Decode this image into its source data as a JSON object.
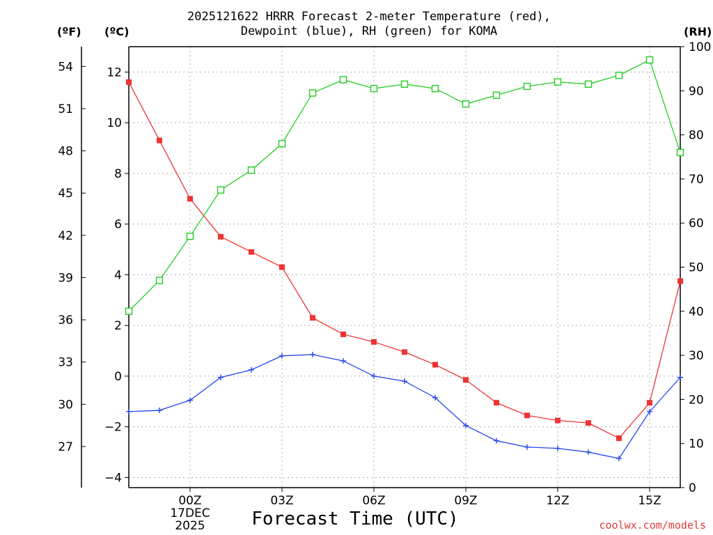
{
  "title": {
    "line1": "2025121622 HRRR Forecast 2-meter Temperature (red),",
    "line2": "Dewpoint (blue), RH (green) for KOMA"
  },
  "units": {
    "fahrenheit": "(ºF)",
    "celsius": "(ºC)",
    "rh": "(RH)"
  },
  "credit": "coolwx.com/models",
  "colors": {
    "temperature": "#ee3333",
    "dewpoint": "#2244ee",
    "rh": "#22cc22",
    "grid": "#aaaaaa"
  },
  "chart_data": {
    "type": "line",
    "title": "2025121622 HRRR Forecast 2-meter Temperature (red), Dewpoint (blue), RH (green) for KOMA",
    "xlabel": "Forecast Time (UTC)",
    "x": [
      22,
      23,
      24,
      25,
      26,
      27,
      28,
      29,
      30,
      31,
      32,
      33,
      34,
      35,
      36,
      37,
      38,
      39,
      40
    ],
    "xlim": [
      22,
      40
    ],
    "x_ticks": [
      {
        "x": 24,
        "label": "00Z",
        "sub1": "17DEC",
        "sub2": "2025"
      },
      {
        "x": 27,
        "label": "03Z"
      },
      {
        "x": 30,
        "label": "06Z"
      },
      {
        "x": 33,
        "label": "09Z"
      },
      {
        "x": 36,
        "label": "12Z"
      },
      {
        "x": 39,
        "label": "15Z"
      }
    ],
    "y_left_c": {
      "label": "(ºC)",
      "ylim": [
        -4.4,
        13.0
      ],
      "ticks": [
        -4,
        -2,
        0,
        2,
        4,
        6,
        8,
        10,
        12
      ]
    },
    "y_left_f": {
      "label": "(ºF)",
      "ticks": [
        27,
        30,
        33,
        36,
        39,
        42,
        45,
        48,
        51,
        54
      ]
    },
    "y_right": {
      "label": "(RH)",
      "ylim": [
        0,
        100
      ],
      "ticks": [
        0,
        10,
        20,
        30,
        40,
        50,
        60,
        70,
        80,
        90,
        100
      ]
    },
    "series": [
      {
        "name": "Temperature",
        "axis": "celsius",
        "marker": "square-filled",
        "values": [
          11.6,
          9.3,
          7.0,
          5.5,
          4.9,
          4.3,
          2.3,
          1.65,
          1.35,
          0.95,
          0.45,
          -0.15,
          -1.05,
          -1.55,
          -1.75,
          -1.85,
          -2.45,
          -1.05,
          3.75
        ]
      },
      {
        "name": "Dewpoint",
        "axis": "celsius",
        "marker": "plus",
        "values": [
          -1.4,
          -1.35,
          -0.95,
          -0.05,
          0.25,
          0.8,
          0.85,
          0.6,
          0.0,
          -0.2,
          -0.85,
          -1.95,
          -2.55,
          -2.8,
          -2.85,
          -3.0,
          -3.25,
          -1.4,
          -0.05
        ]
      },
      {
        "name": "RH",
        "axis": "rh",
        "marker": "square-open",
        "values": [
          40.0,
          47.0,
          57.0,
          67.5,
          72.0,
          78.0,
          89.5,
          92.5,
          90.5,
          91.5,
          90.5,
          87.0,
          89.0,
          91.0,
          92.0,
          91.5,
          93.5,
          97.0,
          76.0
        ]
      }
    ]
  }
}
